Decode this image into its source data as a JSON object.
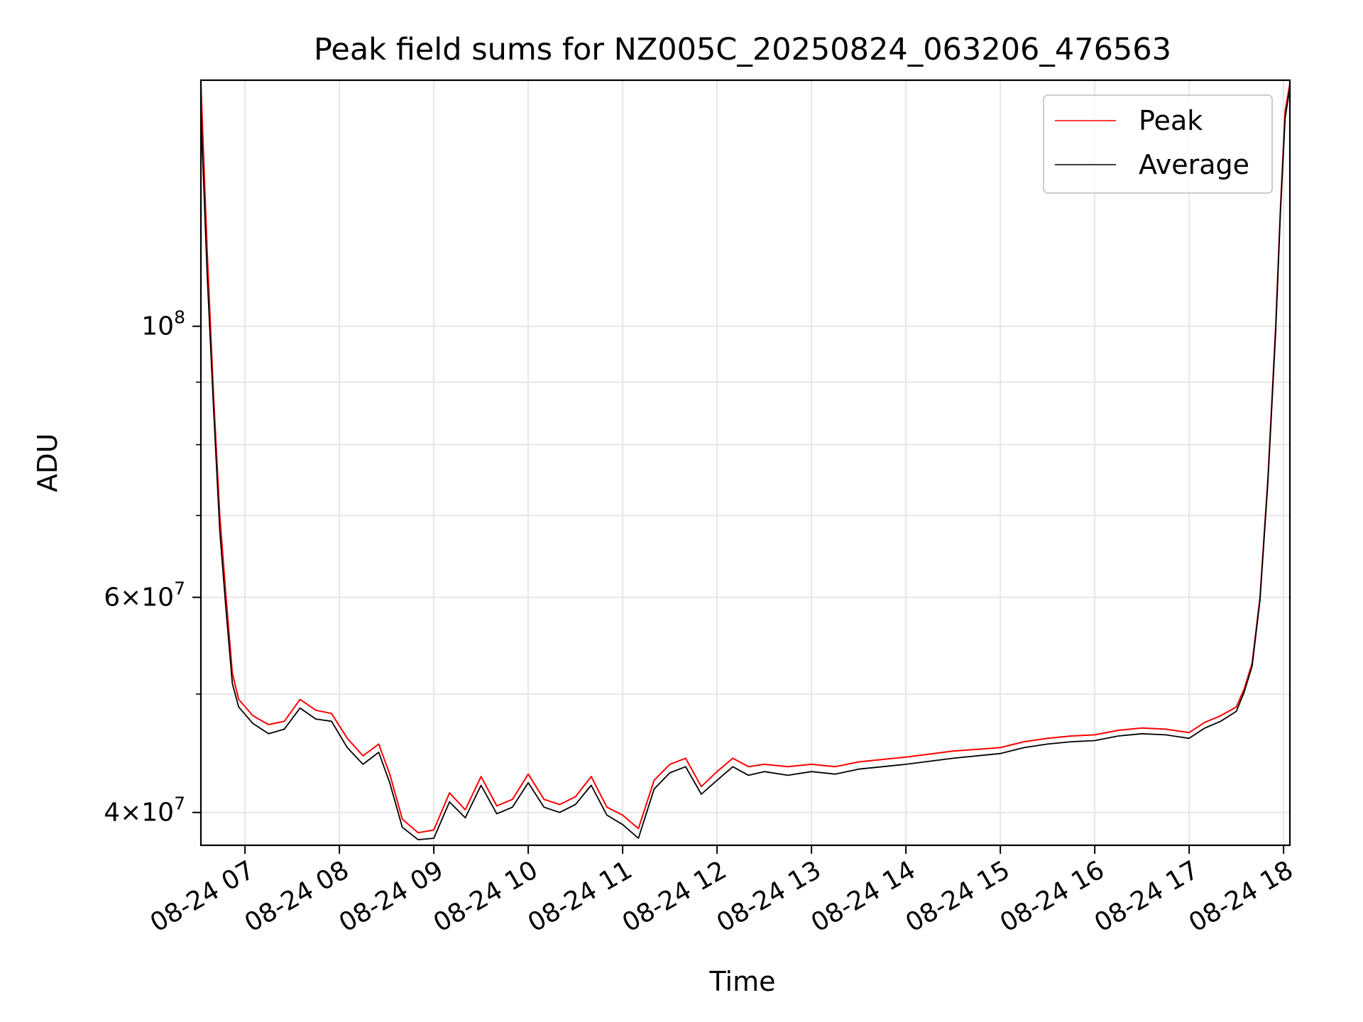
{
  "chart_data": {
    "type": "line",
    "title": "Peak field sums for NZ005C_20250824_063206_476563",
    "xlabel": "Time",
    "ylabel": "ADU",
    "y_scale": "log",
    "grid": true,
    "legend_position": "top-right",
    "xlim": [
      "2025-08-24T06:32",
      "2025-08-24T18:04"
    ],
    "ylim": [
      37600000,
      159000000
    ],
    "x_tick_labels": [
      "08-24 07",
      "08-24 08",
      "08-24 09",
      "08-24 10",
      "08-24 11",
      "08-24 12",
      "08-24 13",
      "08-24 14",
      "08-24 15",
      "08-24 16",
      "08-24 17",
      "08-24 18"
    ],
    "x_tick_values": [
      "2025-08-24T07:00",
      "2025-08-24T08:00",
      "2025-08-24T09:00",
      "2025-08-24T10:00",
      "2025-08-24T11:00",
      "2025-08-24T12:00",
      "2025-08-24T13:00",
      "2025-08-24T14:00",
      "2025-08-24T15:00",
      "2025-08-24T16:00",
      "2025-08-24T17:00",
      "2025-08-24T18:00"
    ],
    "y_ticks": [
      {
        "value": 40000000,
        "mantissa": "4",
        "exp": "7"
      },
      {
        "value": 60000000,
        "mantissa": "6",
        "exp": "7"
      },
      {
        "value": 100000000,
        "mantissa": "",
        "exp": "8"
      }
    ],
    "y_minor_ticks": [
      50000000,
      70000000,
      80000000,
      90000000
    ],
    "series": [
      {
        "name": "Peak",
        "color": "#ff0000",
        "x": [
          "2025-08-24T06:32",
          "2025-08-24T06:36",
          "2025-08-24T06:40",
          "2025-08-24T06:44",
          "2025-08-24T06:48",
          "2025-08-24T06:52",
          "2025-08-24T06:56",
          "2025-08-24T07:05",
          "2025-08-24T07:15",
          "2025-08-24T07:25",
          "2025-08-24T07:35",
          "2025-08-24T07:45",
          "2025-08-24T07:55",
          "2025-08-24T08:05",
          "2025-08-24T08:15",
          "2025-08-24T08:25",
          "2025-08-24T08:32",
          "2025-08-24T08:40",
          "2025-08-24T08:50",
          "2025-08-24T09:00",
          "2025-08-24T09:10",
          "2025-08-24T09:20",
          "2025-08-24T09:30",
          "2025-08-24T09:40",
          "2025-08-24T09:50",
          "2025-08-24T10:00",
          "2025-08-24T10:10",
          "2025-08-24T10:20",
          "2025-08-24T10:30",
          "2025-08-24T10:40",
          "2025-08-24T10:50",
          "2025-08-24T11:00",
          "2025-08-24T11:10",
          "2025-08-24T11:20",
          "2025-08-24T11:30",
          "2025-08-24T11:40",
          "2025-08-24T11:50",
          "2025-08-24T12:00",
          "2025-08-24T12:10",
          "2025-08-24T12:20",
          "2025-08-24T12:30",
          "2025-08-24T12:45",
          "2025-08-24T13:00",
          "2025-08-24T13:15",
          "2025-08-24T13:30",
          "2025-08-24T14:00",
          "2025-08-24T14:30",
          "2025-08-24T15:00",
          "2025-08-24T15:15",
          "2025-08-24T15:30",
          "2025-08-24T15:45",
          "2025-08-24T16:00",
          "2025-08-24T16:15",
          "2025-08-24T16:30",
          "2025-08-24T16:45",
          "2025-08-24T17:00",
          "2025-08-24T17:10",
          "2025-08-24T17:20",
          "2025-08-24T17:30",
          "2025-08-24T17:35",
          "2025-08-24T17:40",
          "2025-08-24T17:45",
          "2025-08-24T17:50",
          "2025-08-24T17:55",
          "2025-08-24T17:58",
          "2025-08-24T18:01",
          "2025-08-24T18:04"
        ],
        "y": [
          158000000,
          115000000,
          88000000,
          70000000,
          60000000,
          52000000,
          49500000,
          48000000,
          47200000,
          47500000,
          49500000,
          48500000,
          48200000,
          46000000,
          44500000,
          45500000,
          43000000,
          39500000,
          38500000,
          38700000,
          41500000,
          40200000,
          42800000,
          40500000,
          41000000,
          43000000,
          41000000,
          40600000,
          41200000,
          42800000,
          40400000,
          39800000,
          38800000,
          42500000,
          43800000,
          44300000,
          42000000,
          43200000,
          44300000,
          43600000,
          43800000,
          43600000,
          43800000,
          43600000,
          44000000,
          44400000,
          44900000,
          45200000,
          45700000,
          46000000,
          46200000,
          46300000,
          46700000,
          46900000,
          46800000,
          46500000,
          47400000,
          48000000,
          48800000,
          50500000,
          53000000,
          60000000,
          75000000,
          100000000,
          125000000,
          150000000,
          158000000
        ]
      },
      {
        "name": "Average",
        "color": "#000000",
        "x": [
          "2025-08-24T06:32",
          "2025-08-24T06:36",
          "2025-08-24T06:40",
          "2025-08-24T06:44",
          "2025-08-24T06:48",
          "2025-08-24T06:52",
          "2025-08-24T06:56",
          "2025-08-24T07:05",
          "2025-08-24T07:15",
          "2025-08-24T07:25",
          "2025-08-24T07:35",
          "2025-08-24T07:45",
          "2025-08-24T07:55",
          "2025-08-24T08:05",
          "2025-08-24T08:15",
          "2025-08-24T08:25",
          "2025-08-24T08:32",
          "2025-08-24T08:40",
          "2025-08-24T08:50",
          "2025-08-24T09:00",
          "2025-08-24T09:10",
          "2025-08-24T09:20",
          "2025-08-24T09:30",
          "2025-08-24T09:40",
          "2025-08-24T09:50",
          "2025-08-24T10:00",
          "2025-08-24T10:10",
          "2025-08-24T10:20",
          "2025-08-24T10:30",
          "2025-08-24T10:40",
          "2025-08-24T10:50",
          "2025-08-24T11:00",
          "2025-08-24T11:10",
          "2025-08-24T11:20",
          "2025-08-24T11:30",
          "2025-08-24T11:40",
          "2025-08-24T11:50",
          "2025-08-24T12:00",
          "2025-08-24T12:10",
          "2025-08-24T12:20",
          "2025-08-24T12:30",
          "2025-08-24T12:45",
          "2025-08-24T13:00",
          "2025-08-24T13:15",
          "2025-08-24T13:30",
          "2025-08-24T14:00",
          "2025-08-24T14:30",
          "2025-08-24T15:00",
          "2025-08-24T15:15",
          "2025-08-24T15:30",
          "2025-08-24T15:45",
          "2025-08-24T16:00",
          "2025-08-24T16:15",
          "2025-08-24T16:30",
          "2025-08-24T16:45",
          "2025-08-24T17:00",
          "2025-08-24T17:10",
          "2025-08-24T17:20",
          "2025-08-24T17:30",
          "2025-08-24T17:35",
          "2025-08-24T17:40",
          "2025-08-24T17:45",
          "2025-08-24T17:50",
          "2025-08-24T17:55",
          "2025-08-24T17:58",
          "2025-08-24T18:01",
          "2025-08-24T18:04"
        ],
        "y": [
          150000000,
          110000000,
          86000000,
          68000000,
          58500000,
          51000000,
          48800000,
          47300000,
          46400000,
          46800000,
          48700000,
          47700000,
          47500000,
          45200000,
          43800000,
          44800000,
          42300000,
          38900000,
          38000000,
          38100000,
          40800000,
          39600000,
          42100000,
          39900000,
          40400000,
          42300000,
          40400000,
          40000000,
          40600000,
          42100000,
          39800000,
          39100000,
          38100000,
          41800000,
          43100000,
          43600000,
          41400000,
          42500000,
          43600000,
          42900000,
          43200000,
          42900000,
          43200000,
          43000000,
          43400000,
          43800000,
          44300000,
          44700000,
          45200000,
          45500000,
          45700000,
          45800000,
          46200000,
          46400000,
          46300000,
          46000000,
          46900000,
          47500000,
          48400000,
          50200000,
          52700000,
          59700000,
          74500000,
          99000000,
          124000000,
          148000000,
          157000000
        ]
      }
    ]
  }
}
